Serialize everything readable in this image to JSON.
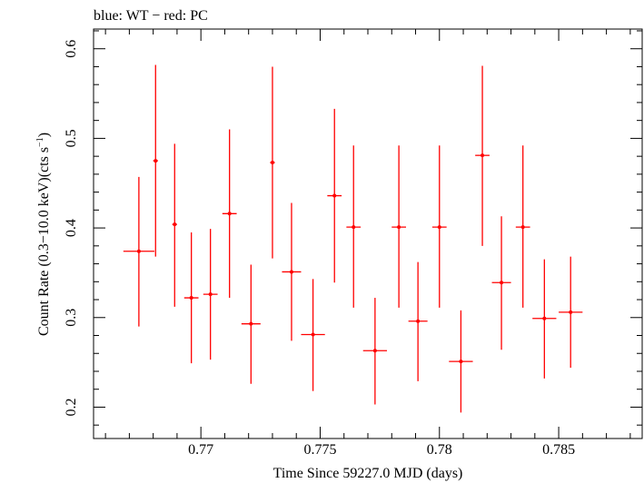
{
  "chart_data": {
    "type": "scatter",
    "title": "blue: WT − red: PC",
    "xlabel": "Time Since 59227.0 MJD (days)",
    "ylabel_main": "Count Rate (0.3−10.0 keV)(cts s",
    "ylabel_exp": "−1",
    "ylabel_close": ")",
    "xlim": [
      0.7655,
      0.7885
    ],
    "ylim": [
      0.165,
      0.622
    ],
    "x_ticks": [
      0.77,
      0.775,
      0.78,
      0.785
    ],
    "x_tick_labels": [
      "0.77",
      "0.775",
      "0.78",
      "0.785"
    ],
    "y_ticks": [
      0.2,
      0.3,
      0.4,
      0.5,
      0.6
    ],
    "y_tick_labels": [
      "0.2",
      "0.3",
      "0.4",
      "0.5",
      "0.6"
    ],
    "x_minor_step": 0.001,
    "y_minor_step": 0.02,
    "grid": false,
    "legend": "none",
    "series": [
      {
        "color": "#ff0000",
        "points": [
          {
            "x": 0.7674,
            "xerr": 0.00065,
            "y": 0.374,
            "ylo": 0.29,
            "yhi": 0.457
          },
          {
            "x": 0.7681,
            "xerr": 0.0001,
            "y": 0.475,
            "ylo": 0.368,
            "yhi": 0.582
          },
          {
            "x": 0.7689,
            "xerr": 0.0001,
            "y": 0.404,
            "ylo": 0.312,
            "yhi": 0.494
          },
          {
            "x": 0.7696,
            "xerr": 0.0003,
            "y": 0.322,
            "ylo": 0.249,
            "yhi": 0.395
          },
          {
            "x": 0.7704,
            "xerr": 0.0003,
            "y": 0.326,
            "ylo": 0.253,
            "yhi": 0.399
          },
          {
            "x": 0.7712,
            "xerr": 0.0003,
            "y": 0.416,
            "ylo": 0.322,
            "yhi": 0.51
          },
          {
            "x": 0.7721,
            "xerr": 0.0004,
            "y": 0.293,
            "ylo": 0.226,
            "yhi": 0.359
          },
          {
            "x": 0.773,
            "xerr": 0.0001,
            "y": 0.473,
            "ylo": 0.366,
            "yhi": 0.58
          },
          {
            "x": 0.7738,
            "xerr": 0.0004,
            "y": 0.351,
            "ylo": 0.274,
            "yhi": 0.428
          },
          {
            "x": 0.7747,
            "xerr": 0.0005,
            "y": 0.281,
            "ylo": 0.218,
            "yhi": 0.343
          },
          {
            "x": 0.7756,
            "xerr": 0.0003,
            "y": 0.436,
            "ylo": 0.339,
            "yhi": 0.533
          },
          {
            "x": 0.7764,
            "xerr": 0.0003,
            "y": 0.401,
            "ylo": 0.311,
            "yhi": 0.492
          },
          {
            "x": 0.7773,
            "xerr": 0.0005,
            "y": 0.263,
            "ylo": 0.203,
            "yhi": 0.322
          },
          {
            "x": 0.7783,
            "xerr": 0.0003,
            "y": 0.401,
            "ylo": 0.311,
            "yhi": 0.492
          },
          {
            "x": 0.7791,
            "xerr": 0.0004,
            "y": 0.296,
            "ylo": 0.229,
            "yhi": 0.362
          },
          {
            "x": 0.78,
            "xerr": 0.0003,
            "y": 0.401,
            "ylo": 0.311,
            "yhi": 0.492
          },
          {
            "x": 0.7809,
            "xerr": 0.0005,
            "y": 0.251,
            "ylo": 0.194,
            "yhi": 0.308
          },
          {
            "x": 0.7818,
            "xerr": 0.0003,
            "y": 0.481,
            "ylo": 0.38,
            "yhi": 0.581
          },
          {
            "x": 0.7826,
            "xerr": 0.0004,
            "y": 0.339,
            "ylo": 0.264,
            "yhi": 0.413
          },
          {
            "x": 0.7835,
            "xerr": 0.0003,
            "y": 0.401,
            "ylo": 0.311,
            "yhi": 0.492
          },
          {
            "x": 0.7844,
            "xerr": 0.0005,
            "y": 0.299,
            "ylo": 0.232,
            "yhi": 0.365
          },
          {
            "x": 0.7855,
            "xerr": 0.0005,
            "y": 0.306,
            "ylo": 0.244,
            "yhi": 0.368
          }
        ]
      }
    ]
  }
}
